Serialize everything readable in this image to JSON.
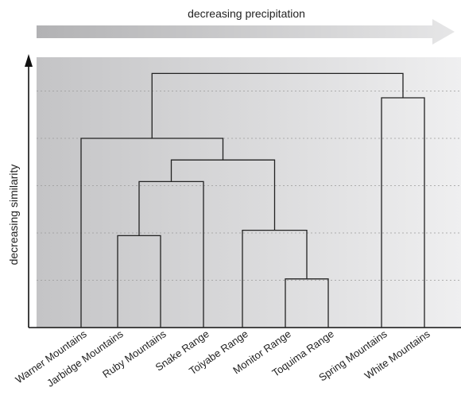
{
  "top_arrow": {
    "label": "decreasing precipitation"
  },
  "y_axis": {
    "label": "decreasing similarity"
  },
  "leaves": [
    "Warner Mountains",
    "Jarbidge Mountains",
    "Ruby Mountains",
    "Snake Range",
    "Toiyabe Range",
    "Monitor Range",
    "Toquima Range",
    "Spring Mountains",
    "White Mountains"
  ],
  "merges": [
    {
      "id": "m1",
      "children": [
        "L5",
        "L6"
      ],
      "height": 0.18
    },
    {
      "id": "m2",
      "children": [
        "L1",
        "L2"
      ],
      "height": 0.34
    },
    {
      "id": "m3",
      "children": [
        "L4",
        "m1"
      ],
      "height": 0.36
    },
    {
      "id": "m4",
      "children": [
        "m2",
        "L3"
      ],
      "height": 0.54
    },
    {
      "id": "m5",
      "children": [
        "m4",
        "m3"
      ],
      "height": 0.62
    },
    {
      "id": "m6",
      "children": [
        "L0",
        "m5"
      ],
      "height": 0.7
    },
    {
      "id": "m7",
      "children": [
        "L7",
        "L8"
      ],
      "height": 0.85
    },
    {
      "id": "m8",
      "children": [
        "m6",
        "m7"
      ],
      "height": 0.94
    }
  ],
  "colors": {
    "gradient_left": "#c4c4c6",
    "gradient_right": "#efeff0",
    "arrow_left": "#b2b2b4",
    "arrow_right": "#e6e6e7",
    "lines": "#222222",
    "grid": "#9a9a9a"
  }
}
